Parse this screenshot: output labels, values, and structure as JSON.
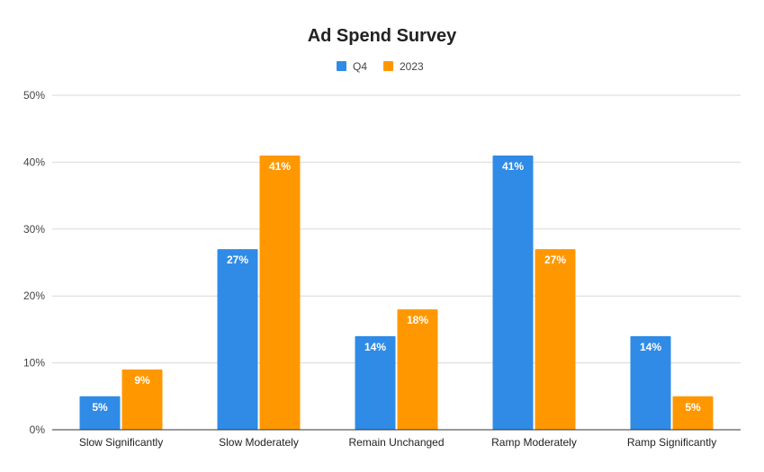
{
  "chart_data": {
    "type": "bar",
    "title": "Ad Spend Survey",
    "xlabel": "",
    "ylabel": "",
    "categories": [
      "Slow Significantly",
      "Slow Moderately",
      "Remain Unchanged",
      "Ramp Moderately",
      "Ramp Significantly"
    ],
    "series": [
      {
        "name": "Q4",
        "color": "#2f8be6",
        "values": [
          5,
          27,
          14,
          41,
          14
        ],
        "labels": [
          "5%",
          "27%",
          "14%",
          "41%",
          "14%"
        ]
      },
      {
        "name": "2023",
        "color": "#ff9800",
        "values": [
          9,
          41,
          18,
          27,
          5
        ],
        "labels": [
          "9%",
          "41%",
          "18%",
          "27%",
          "5%"
        ]
      }
    ],
    "ylim": [
      0,
      50
    ],
    "yticks": [
      0,
      10,
      20,
      30,
      40,
      50
    ],
    "ytick_labels": [
      "0%",
      "10%",
      "20%",
      "30%",
      "40%",
      "50%"
    ],
    "grid": true,
    "legend_position": "top-center"
  }
}
